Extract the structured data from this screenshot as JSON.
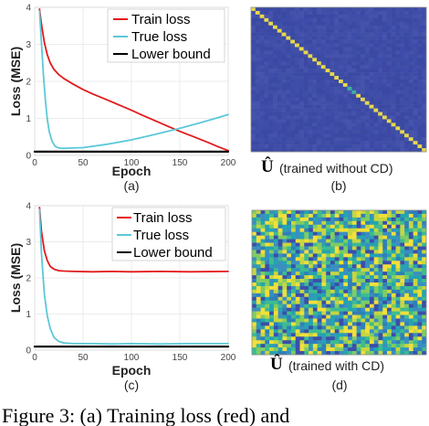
{
  "chart_data": [
    {
      "type": "line",
      "id": "a",
      "subplot_label": "(a)",
      "xlabel": "Epoch",
      "ylabel": "Loss (MSE)",
      "xlim": [
        0,
        200
      ],
      "ylim": [
        0,
        4
      ],
      "xticks": [
        "0",
        "50",
        "100",
        "150",
        "200"
      ],
      "yticks": [
        "0",
        "1",
        "2",
        "3",
        "4"
      ],
      "legend_position": "top-right",
      "series": [
        {
          "name": "Train loss",
          "color": "#e31a1c",
          "x": [
            5,
            7,
            10,
            13,
            16,
            20,
            25,
            30,
            40,
            50,
            60,
            75,
            90,
            100,
            110,
            125,
            140,
            150,
            165,
            180,
            190,
            200
          ],
          "y": [
            3.95,
            3.55,
            3.05,
            2.72,
            2.5,
            2.32,
            2.18,
            2.08,
            1.92,
            1.78,
            1.66,
            1.5,
            1.33,
            1.22,
            1.1,
            0.93,
            0.76,
            0.65,
            0.5,
            0.34,
            0.23,
            0.13
          ]
        },
        {
          "name": "True loss",
          "color": "#5bc8d9",
          "x": [
            5,
            7,
            9,
            11,
            13,
            15,
            18,
            21,
            25,
            30,
            40,
            50,
            75,
            100,
            125,
            150,
            175,
            200
          ],
          "y": [
            3.9,
            3.05,
            2.2,
            1.5,
            0.98,
            0.65,
            0.38,
            0.25,
            0.2,
            0.19,
            0.2,
            0.21,
            0.3,
            0.42,
            0.57,
            0.73,
            0.91,
            1.1
          ]
        },
        {
          "name": "Lower bound",
          "color": "#000000",
          "x": [
            0,
            200
          ],
          "y": [
            0.1,
            0.1
          ]
        }
      ]
    },
    {
      "type": "heatmap",
      "id": "b",
      "subplot_label": "(b)",
      "title_symbol": "Û",
      "title": "(trained without CD)",
      "size": 40,
      "pattern": "diagonal-dominant"
    },
    {
      "type": "line",
      "id": "c",
      "subplot_label": "(c)",
      "xlabel": "Epoch",
      "ylabel": "Loss (MSE)",
      "xlim": [
        0,
        200
      ],
      "ylim": [
        0,
        4
      ],
      "xticks": [
        "0",
        "50",
        "100",
        "150",
        "200"
      ],
      "yticks": [
        "0",
        "1",
        "2",
        "3",
        "4"
      ],
      "legend_position": "top-right",
      "series": [
        {
          "name": "Train loss",
          "color": "#e31a1c",
          "x": [
            5,
            7,
            10,
            13,
            16,
            20,
            25,
            30,
            40,
            60,
            80,
            100,
            130,
            160,
            200
          ],
          "y": [
            3.95,
            3.3,
            2.75,
            2.48,
            2.32,
            2.24,
            2.2,
            2.19,
            2.18,
            2.17,
            2.18,
            2.17,
            2.18,
            2.17,
            2.18
          ]
        },
        {
          "name": "True loss",
          "color": "#5bc8d9",
          "x": [
            5,
            7,
            10,
            13,
            16,
            20,
            25,
            30,
            40,
            60,
            80,
            100,
            130,
            160,
            200
          ],
          "y": [
            3.9,
            2.7,
            1.55,
            0.95,
            0.6,
            0.35,
            0.24,
            0.2,
            0.18,
            0.18,
            0.17,
            0.18,
            0.17,
            0.18,
            0.18
          ]
        },
        {
          "name": "Lower bound",
          "color": "#000000",
          "x": [
            0,
            200
          ],
          "y": [
            0.1,
            0.1
          ]
        }
      ]
    },
    {
      "type": "heatmap",
      "id": "d",
      "subplot_label": "(d)",
      "title_symbol": "Û",
      "title": "(trained with CD)",
      "size": 40,
      "pattern": "noise"
    }
  ],
  "caption": "Figure 3:    (a) Training loss (red) and",
  "colors": {
    "heatmap_background": "#3d4aa6",
    "heatmap_diagonal": "#e8d84a",
    "heatmap_noise_palette": [
      "#3b4ea8",
      "#2f7fb9",
      "#25a3b0",
      "#3dbb8f",
      "#7fcc63",
      "#c7d63f",
      "#f2df3a",
      "#3a8fc0"
    ]
  }
}
